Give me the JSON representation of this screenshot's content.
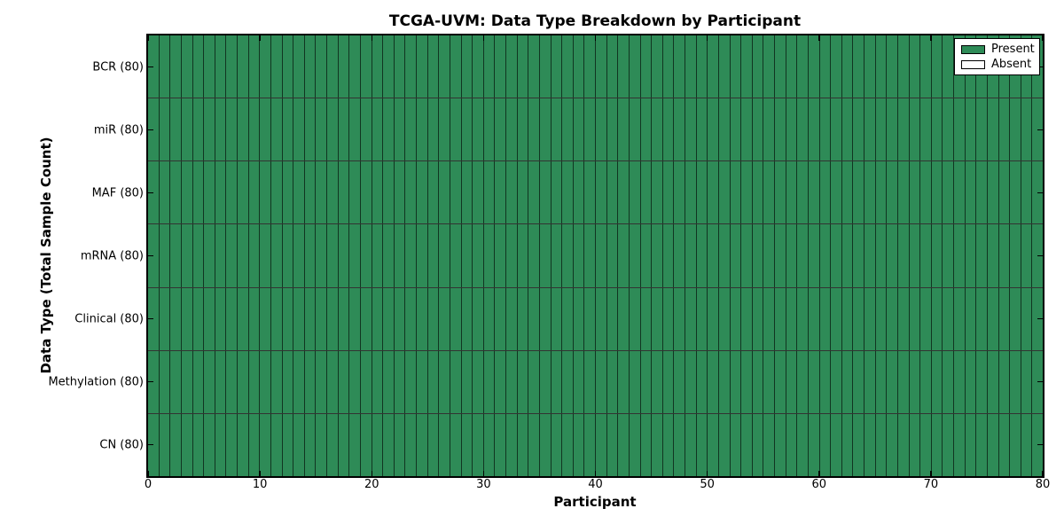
{
  "chart_data": {
    "type": "heatmap",
    "title": "TCGA-UVM: Data Type Breakdown by Participant",
    "xlabel": "Participant",
    "ylabel": "Data Type (Total Sample Count)",
    "x_axis": {
      "min": 0,
      "max": 80,
      "ticks": [
        "0",
        "10",
        "20",
        "30",
        "40",
        "50",
        "60",
        "70",
        "80"
      ]
    },
    "n_participants": 80,
    "rows": [
      {
        "label": "BCR (80)",
        "total": 80,
        "present": 80,
        "absent": 0
      },
      {
        "label": "miR (80)",
        "total": 80,
        "present": 80,
        "absent": 0
      },
      {
        "label": "MAF (80)",
        "total": 80,
        "present": 80,
        "absent": 0
      },
      {
        "label": "mRNA (80)",
        "total": 80,
        "present": 80,
        "absent": 0
      },
      {
        "label": "Clinical (80)",
        "total": 80,
        "present": 80,
        "absent": 0
      },
      {
        "label": "Methylation (80)",
        "total": 80,
        "present": 80,
        "absent": 0
      },
      {
        "label": "CN (80)",
        "total": 80,
        "present": 80,
        "absent": 0
      }
    ],
    "all_cells_present": true,
    "grid": true,
    "legend_position": "upper right",
    "legend": [
      {
        "label": "Present",
        "color": "#2e8b57"
      },
      {
        "label": "Absent",
        "color": "#ffffff"
      }
    ]
  }
}
